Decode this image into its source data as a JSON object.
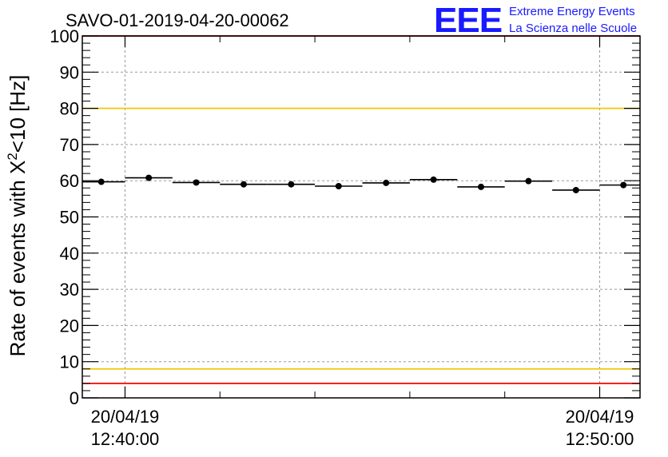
{
  "chart_data": {
    "type": "scatter",
    "title": "SAVO-01-2019-04-20-00062",
    "xlabel": "",
    "ylabel": "Rate of events with X",
    "ylabel_sup": "2",
    "ylabel_tail": "<10 [Hz]",
    "ylim": [
      0,
      100
    ],
    "yticks": [
      0,
      10,
      20,
      30,
      40,
      50,
      60,
      70,
      80,
      90,
      100
    ],
    "ytick_labels": [
      "0",
      "10",
      "20",
      "30",
      "40",
      "50",
      "60",
      "70",
      "80",
      "90",
      "100"
    ],
    "xlim_minutes": [
      -0.9,
      10.85
    ],
    "x_major_ticks": [
      {
        "value": 0,
        "line1": "20/04/19",
        "line2": "12:40:00"
      },
      {
        "value": 10,
        "line1": "20/04/19",
        "line2": "12:50:00"
      }
    ],
    "x_minor_ticks": [
      2,
      4,
      6,
      8
    ],
    "bin_width_minutes": 1,
    "x": [
      -0.5,
      0.5,
      1.5,
      2.5,
      3.5,
      4.5,
      5.5,
      6.5,
      7.5,
      8.5,
      9.5,
      10.5
    ],
    "values": [
      59.7,
      60.8,
      59.5,
      59.0,
      59.0,
      58.5,
      59.4,
      60.3,
      58.3,
      59.9,
      57.4,
      58.8
    ],
    "reference_lines": [
      {
        "y": 100,
        "color": "#ff0000"
      },
      {
        "y": 80,
        "color": "#f0c800"
      },
      {
        "y": 8,
        "color": "#f0c800"
      },
      {
        "y": 4,
        "color": "#ff0000"
      }
    ],
    "grid": true
  },
  "logo": {
    "letters": "EEE",
    "line1": "Extreme Energy Events",
    "line2": "La Scienza nelle Scuole",
    "color": "#1a1aff"
  }
}
